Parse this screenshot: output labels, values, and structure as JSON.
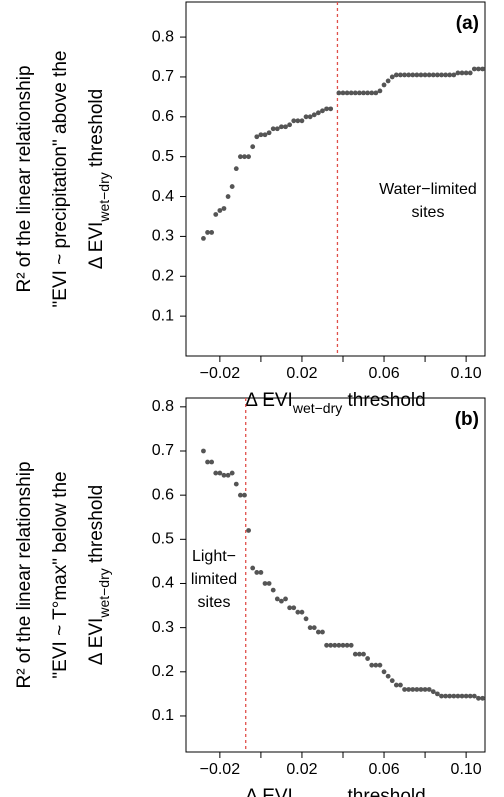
{
  "chart_data": [
    {
      "type": "scatter",
      "panel_label": "(a)",
      "ylabel_lines": [
        "R² of the linear relationship",
        "\"EVI ~ precipitation\" above the"
      ],
      "ylabel_sub": {
        "prefix": "Δ EVI",
        "sub": "wet−dry",
        "suffix": " threshold"
      },
      "xlabel": {
        "prefix": "Δ EVI",
        "sub": "wet−dry",
        "suffix": " threshold"
      },
      "annotation": [
        "Water−limited",
        "sites"
      ],
      "threshold": 0.0373,
      "threshold_color": "#e0504a",
      "color": "#555555",
      "xlim": [
        -0.0365,
        0.1092
      ],
      "ylim": [
        0,
        0.888
      ],
      "xticks": [
        {
          "value": -0.02,
          "label": "−0.02"
        },
        0.02,
        0.06,
        {
          "value": 0.1,
          "label": "0.10"
        }
      ],
      "xminorticks": [
        0,
        0.04,
        0.08
      ],
      "yticks": [
        0.1,
        0.2,
        0.3,
        0.4,
        0.5,
        0.6,
        0.7,
        0.8
      ],
      "x": [
        -0.028,
        -0.026,
        -0.024,
        -0.022,
        -0.02,
        -0.018,
        -0.016,
        -0.014,
        -0.012,
        -0.01,
        -0.008,
        -0.006,
        -0.004,
        -0.002,
        0,
        0.002,
        0.004,
        0.006,
        0.008,
        0.01,
        0.012,
        0.014,
        0.016,
        0.018,
        0.02,
        0.022,
        0.024,
        0.026,
        0.028,
        0.03,
        0.032,
        0.034,
        0.038,
        0.04,
        0.042,
        0.044,
        0.046,
        0.048,
        0.05,
        0.052,
        0.054,
        0.056,
        0.058,
        0.06,
        0.062,
        0.064,
        0.066,
        0.068,
        0.07,
        0.072,
        0.074,
        0.076,
        0.078,
        0.08,
        0.082,
        0.084,
        0.086,
        0.088,
        0.09,
        0.092,
        0.094,
        0.096,
        0.098,
        0.1,
        0.102,
        0.104,
        0.106,
        0.108
      ],
      "values": [
        0.295,
        0.31,
        0.31,
        0.355,
        0.365,
        0.37,
        0.4,
        0.425,
        0.47,
        0.5,
        0.5,
        0.5,
        0.525,
        0.55,
        0.555,
        0.555,
        0.56,
        0.57,
        0.57,
        0.575,
        0.575,
        0.58,
        0.59,
        0.59,
        0.59,
        0.6,
        0.6,
        0.605,
        0.61,
        0.615,
        0.62,
        0.62,
        0.66,
        0.66,
        0.66,
        0.66,
        0.66,
        0.66,
        0.66,
        0.66,
        0.66,
        0.66,
        0.665,
        0.68,
        0.69,
        0.7,
        0.705,
        0.705,
        0.705,
        0.705,
        0.705,
        0.705,
        0.705,
        0.705,
        0.705,
        0.705,
        0.705,
        0.705,
        0.705,
        0.705,
        0.705,
        0.71,
        0.71,
        0.71,
        0.71,
        0.72,
        0.72,
        0.72
      ]
    },
    {
      "type": "scatter",
      "panel_label": "(b)",
      "ylabel_lines": [
        "R² of the linear relationship",
        "\"EVI ~ T°max\" below the"
      ],
      "ylabel_sub": {
        "prefix": "Δ EVI",
        "sub": "wet−dry",
        "suffix": " threshold"
      },
      "xlabel": {
        "prefix": "Δ EVI",
        "sub": "wet−dry",
        "suffix": " threshold"
      },
      "annotation": [
        "Light−",
        "limited",
        "sites"
      ],
      "threshold": -0.0074,
      "threshold_color": "#e0504a",
      "color": "#555555",
      "xlim": [
        -0.0365,
        0.1092
      ],
      "ylim": [
        0.0184,
        0.82
      ],
      "xticks": [
        {
          "value": -0.02,
          "label": "−0.02"
        },
        0.02,
        0.06,
        {
          "value": 0.1,
          "label": "0.10"
        }
      ],
      "xminorticks": [
        0,
        0.04,
        0.08
      ],
      "yticks": [
        0.1,
        0.2,
        0.3,
        0.4,
        0.5,
        0.6,
        0.7,
        0.8
      ],
      "x": [
        -0.028,
        -0.026,
        -0.024,
        -0.022,
        -0.02,
        -0.018,
        -0.016,
        -0.014,
        -0.012,
        -0.01,
        -0.008,
        -0.006,
        -0.004,
        -0.002,
        0,
        0.002,
        0.004,
        0.006,
        0.008,
        0.01,
        0.012,
        0.014,
        0.016,
        0.018,
        0.02,
        0.022,
        0.024,
        0.026,
        0.028,
        0.03,
        0.032,
        0.034,
        0.036,
        0.038,
        0.04,
        0.042,
        0.044,
        0.046,
        0.048,
        0.05,
        0.052,
        0.054,
        0.056,
        0.058,
        0.06,
        0.062,
        0.064,
        0.066,
        0.068,
        0.07,
        0.072,
        0.074,
        0.076,
        0.078,
        0.08,
        0.082,
        0.084,
        0.086,
        0.088,
        0.09,
        0.092,
        0.094,
        0.096,
        0.098,
        0.1,
        0.102,
        0.104,
        0.106,
        0.108
      ],
      "values": [
        0.7,
        0.675,
        0.675,
        0.65,
        0.65,
        0.645,
        0.645,
        0.65,
        0.625,
        0.6,
        0.6,
        0.52,
        0.435,
        0.425,
        0.425,
        0.4,
        0.4,
        0.385,
        0.365,
        0.36,
        0.365,
        0.345,
        0.345,
        0.335,
        0.335,
        0.32,
        0.3,
        0.3,
        0.29,
        0.29,
        0.26,
        0.26,
        0.26,
        0.26,
        0.26,
        0.26,
        0.26,
        0.24,
        0.24,
        0.24,
        0.23,
        0.215,
        0.215,
        0.215,
        0.2,
        0.19,
        0.18,
        0.17,
        0.17,
        0.16,
        0.16,
        0.16,
        0.16,
        0.16,
        0.16,
        0.16,
        0.155,
        0.15,
        0.145,
        0.145,
        0.145,
        0.145,
        0.145,
        0.145,
        0.145,
        0.145,
        0.145,
        0.14,
        0.14
      ]
    }
  ]
}
